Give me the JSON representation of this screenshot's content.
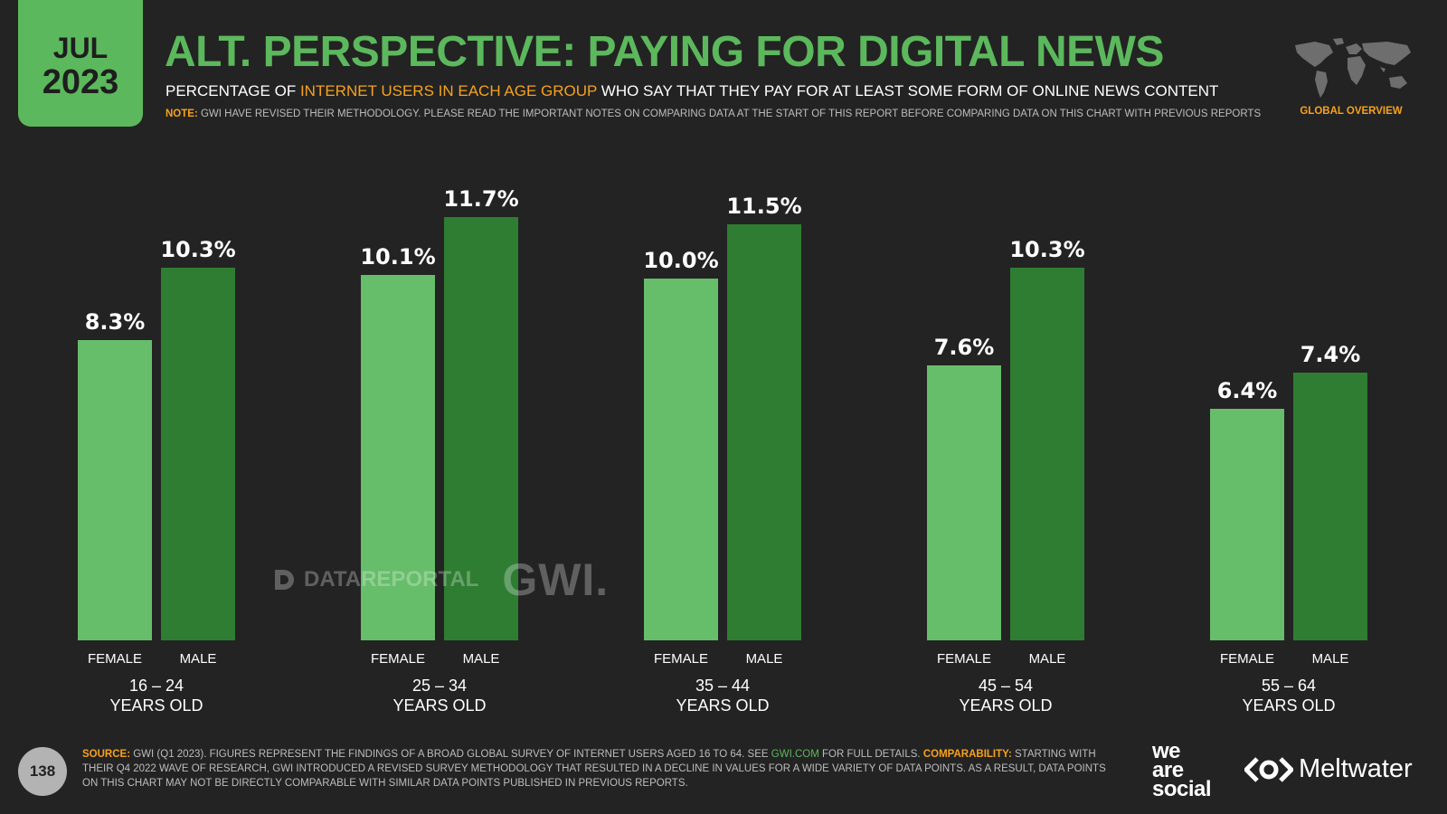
{
  "badge": {
    "month": "JUL",
    "year": "2023"
  },
  "header": {
    "title": "ALT. PERSPECTIVE: PAYING FOR DIGITAL NEWS",
    "subtitle_pre": "PERCENTAGE OF ",
    "subtitle_highlight": "INTERNET USERS IN EACH AGE GROUP",
    "subtitle_post": " WHO SAY THAT THEY PAY FOR AT LEAST SOME FORM OF ONLINE NEWS CONTENT",
    "note_label": "NOTE:",
    "note_text": " GWI HAVE REVISED THEIR METHODOLOGY. PLEASE READ THE IMPORTANT NOTES ON COMPARING DATA AT THE START OF THIS REPORT BEFORE COMPARING DATA ON THIS CHART WITH PREVIOUS REPORTS",
    "overview_label": "GLOBAL OVERVIEW"
  },
  "watermark": {
    "datareportal": "DATAREPORTAL",
    "gwi": "GWI."
  },
  "chart_data": {
    "type": "bar",
    "categories": [
      "16 – 24",
      "25 – 34",
      "35 – 44",
      "45 – 54",
      "55 – 64"
    ],
    "category_suffix": "YEARS OLD",
    "series": [
      {
        "name": "FEMALE",
        "values": [
          8.3,
          10.1,
          10.0,
          7.6,
          6.4
        ],
        "labels": [
          "8.3%",
          "10.1%",
          "10.0%",
          "7.6%",
          "6.4%"
        ],
        "color": "#66bd6a"
      },
      {
        "name": "MALE",
        "values": [
          10.3,
          11.7,
          11.5,
          10.3,
          7.4
        ],
        "labels": [
          "10.3%",
          "11.7%",
          "11.5%",
          "10.3%",
          "7.4%"
        ],
        "color": "#2e7d32"
      }
    ],
    "ylim": [
      0,
      12.5
    ]
  },
  "colors": {
    "accent": "#5cb85c",
    "highlight": "#f6a21e",
    "background": "#232323"
  },
  "footer": {
    "page_number": "138",
    "source_label": "SOURCE:",
    "source_text_1": " GWI (Q1 2023). FIGURES REPRESENT THE FINDINGS OF A BROAD GLOBAL SURVEY OF INTERNET USERS AGED 16 TO 64. SEE ",
    "source_link": "GWI.COM",
    "source_text_2": " FOR FULL DETAILS. ",
    "comparability_label": "COMPARABILITY:",
    "comparability_text": " STARTING WITH THEIR Q4 2022 WAVE OF RESEARCH, GWI INTRODUCED A REVISED SURVEY METHODOLOGY THAT RESULTED IN A DECLINE IN VALUES FOR A WIDE VARIETY OF DATA POINTS. AS A RESULT, DATA POINTS ON THIS CHART MAY NOT BE DIRECTLY COMPARABLE WITH SIMILAR DATA POINTS PUBLISHED IN PREVIOUS REPORTS.",
    "logo_was_1": "we",
    "logo_was_2": "are",
    "logo_was_3": "social",
    "logo_meltwater": "Meltwater"
  }
}
